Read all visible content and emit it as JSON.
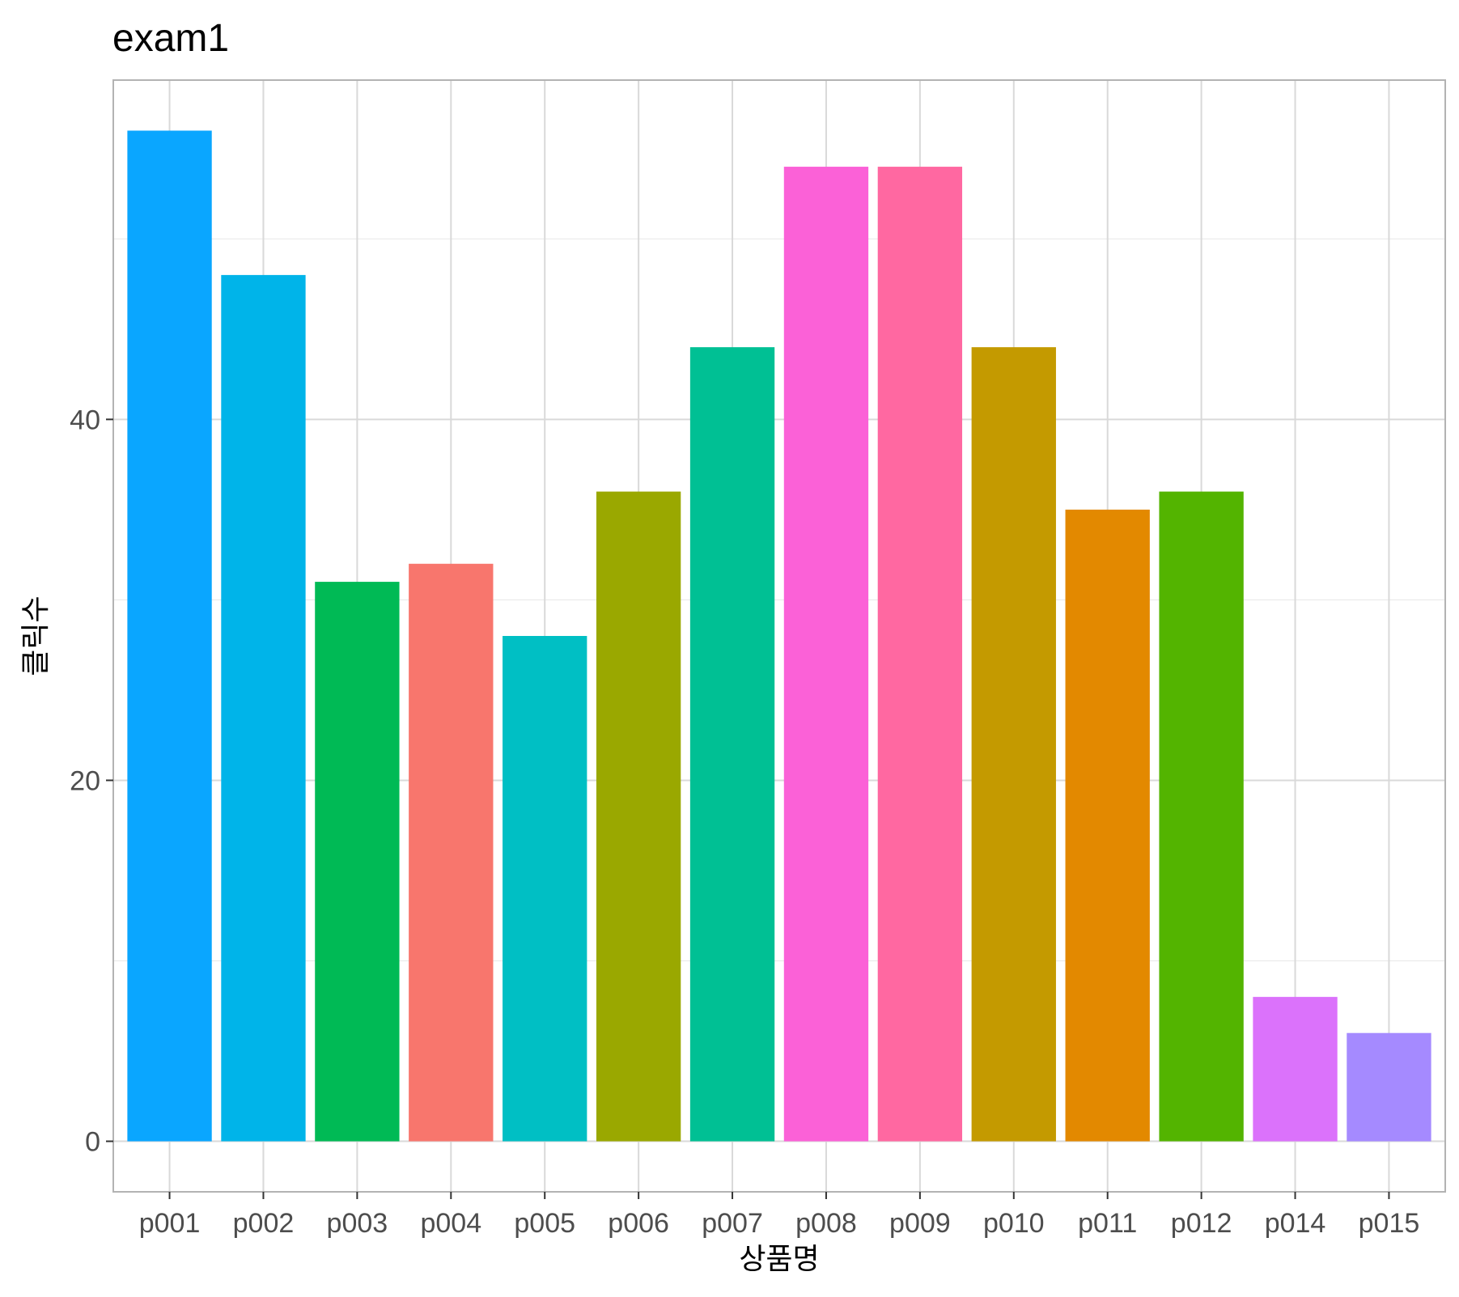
{
  "chart_data": {
    "type": "bar",
    "title": "exam1",
    "xlabel": "상품명",
    "ylabel": "클릭수",
    "categories": [
      "p001",
      "p002",
      "p003",
      "p004",
      "p005",
      "p006",
      "p007",
      "p008",
      "p009",
      "p010",
      "p011",
      "p012",
      "p014",
      "p015"
    ],
    "values": [
      56,
      48,
      31,
      32,
      28,
      36,
      44,
      54,
      54,
      44,
      35,
      36,
      8,
      6
    ],
    "colors": [
      "#0AA6FF",
      "#00B4E9",
      "#00BA55",
      "#F8766D",
      "#00BFC4",
      "#9AA800",
      "#00C094",
      "#FB61D7",
      "#FF68A1",
      "#C49A00",
      "#E38900",
      "#53B400",
      "#DB72FB",
      "#A58AFF"
    ],
    "yticks": [
      0,
      20,
      40
    ],
    "ylim": [
      -2.8,
      58.8
    ],
    "grid": true,
    "legend": "none"
  }
}
